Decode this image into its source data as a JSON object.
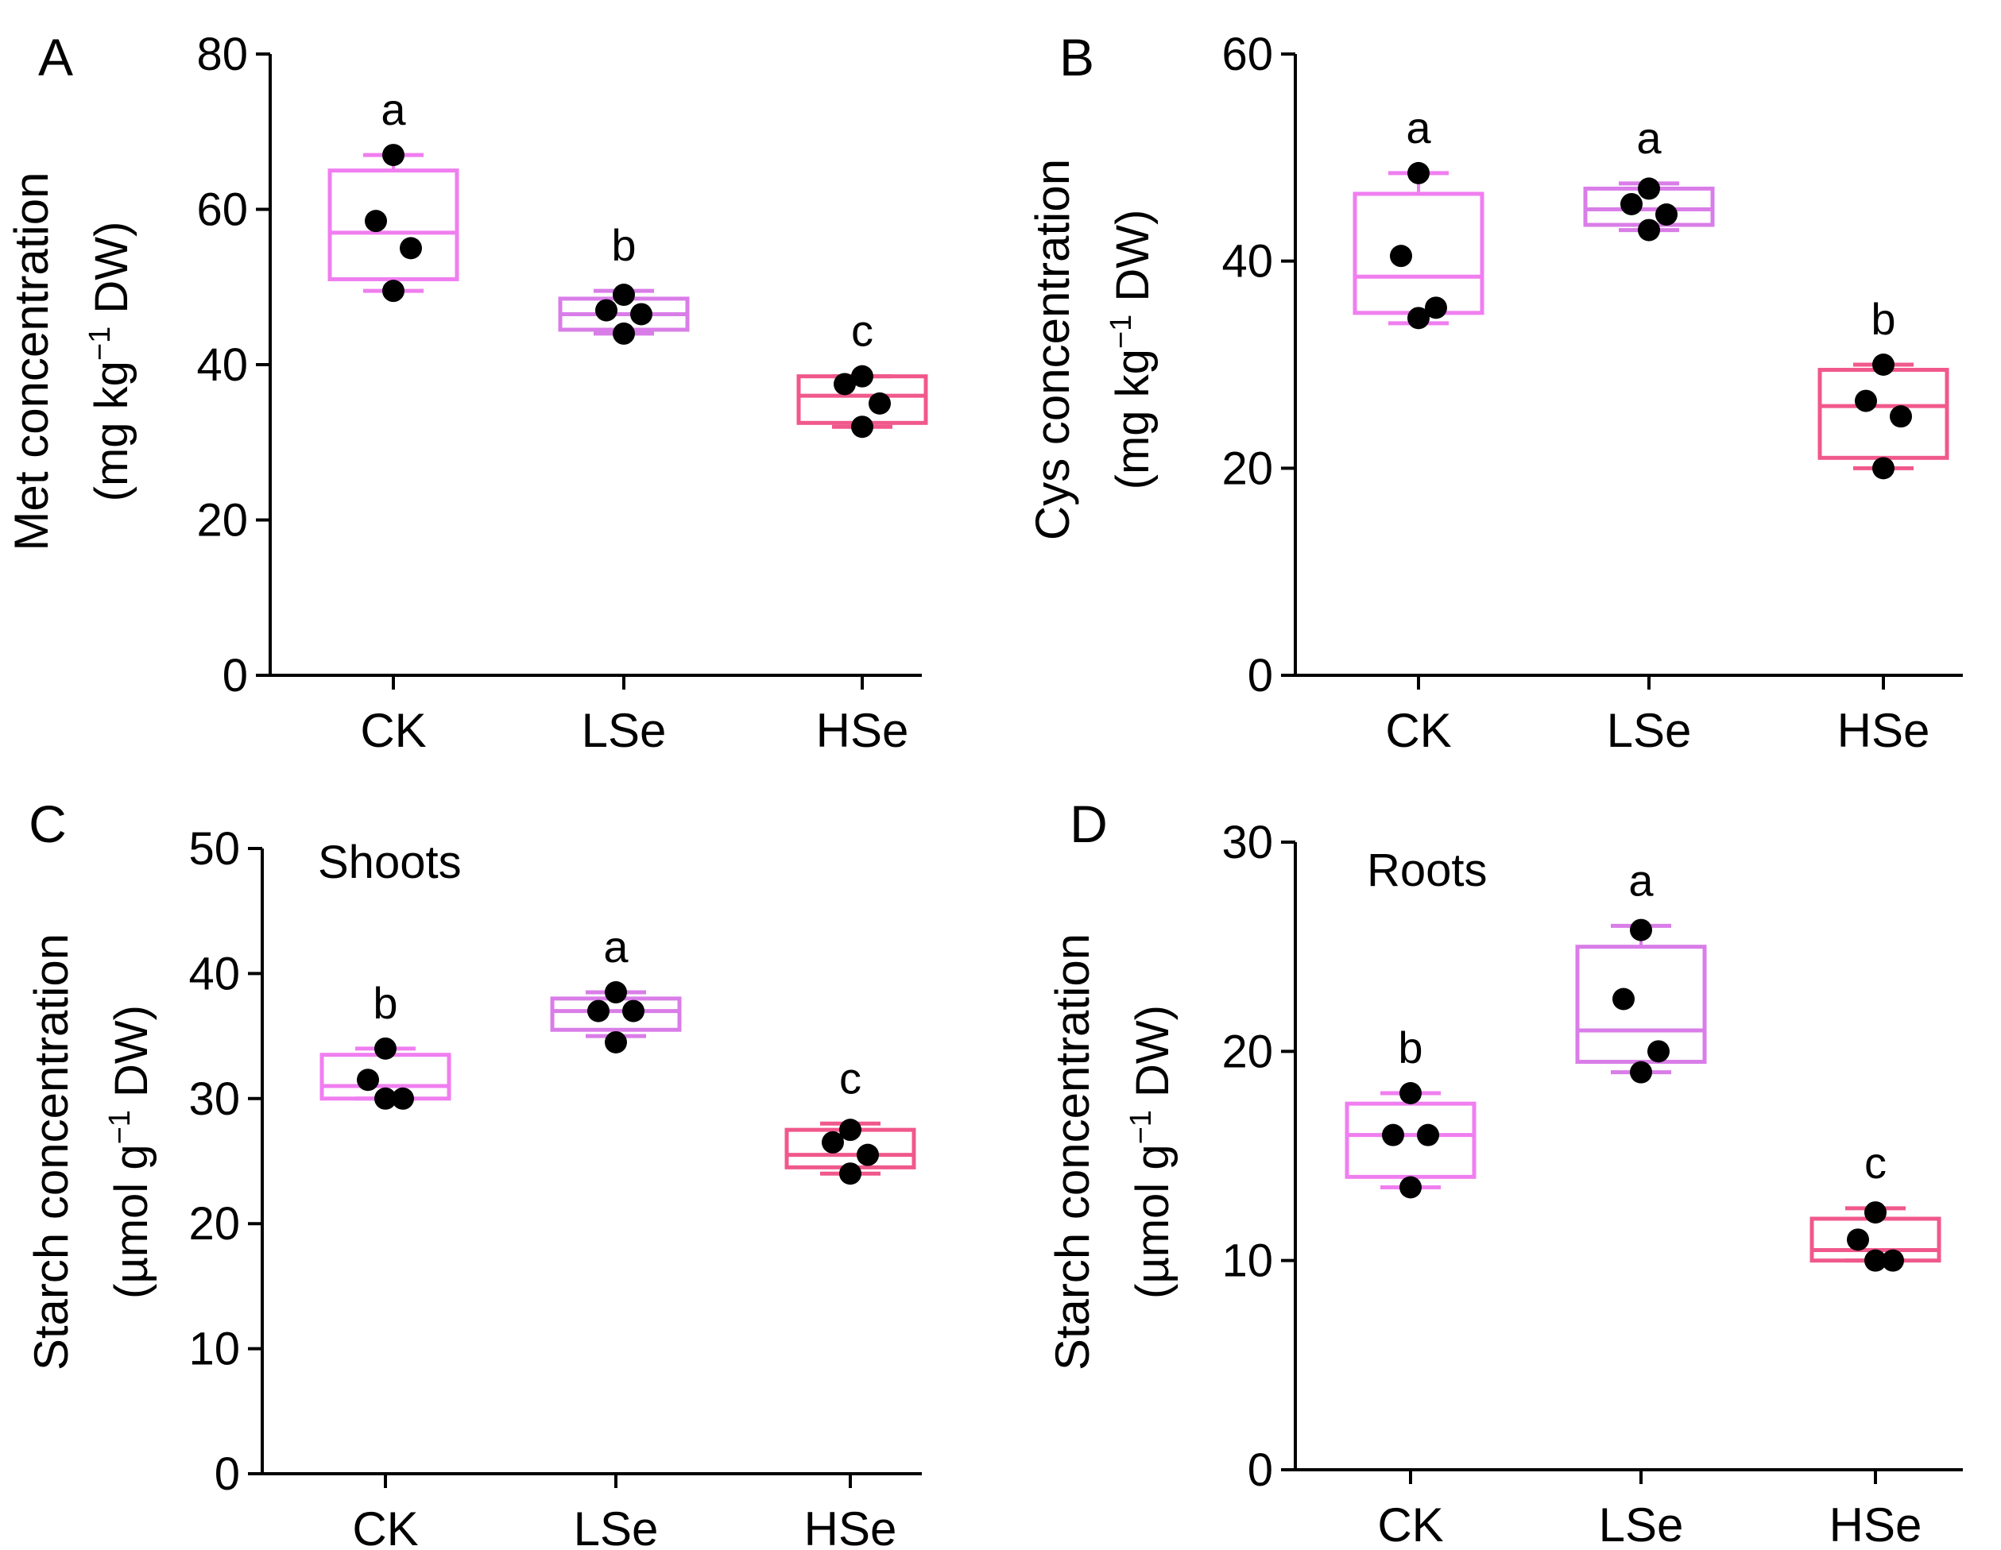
{
  "figure": {
    "panel_count": 4
  },
  "colors": {
    "CK": "#f07ef0",
    "LSe": "#d97de8",
    "HSe": "#f0588c",
    "point": "#000000",
    "axis": "#000000"
  },
  "chart_data": [
    {
      "panel": "A",
      "type": "box",
      "categories": [
        "CK",
        "LSe",
        "HSe"
      ],
      "ylabel_line1": "Met concentration",
      "ylabel_line2_pre": "(mg kg",
      "ylabel_sup": "−1",
      "ylabel_line2_post": " DW)",
      "ylim": [
        0,
        80
      ],
      "yticks": [
        0,
        20,
        40,
        60,
        80
      ],
      "annotation": "",
      "groups": [
        {
          "name": "CK",
          "letter": "a",
          "min": 49.5,
          "q1": 51,
          "median": 57,
          "q3": 65,
          "max": 67,
          "points": [
            67,
            58.5,
            55,
            49.5
          ]
        },
        {
          "name": "LSe",
          "letter": "b",
          "min": 44,
          "q1": 44.5,
          "median": 46.5,
          "q3": 48.5,
          "max": 49.5,
          "points": [
            49,
            47,
            46.5,
            44
          ]
        },
        {
          "name": "HSe",
          "letter": "c",
          "min": 32,
          "q1": 32.5,
          "median": 36,
          "q3": 38.5,
          "max": 38.5,
          "points": [
            38.5,
            37.5,
            35,
            32
          ]
        }
      ]
    },
    {
      "panel": "B",
      "type": "box",
      "categories": [
        "CK",
        "LSe",
        "HSe"
      ],
      "ylabel_line1": "Cys concentration",
      "ylabel_line2_pre": "(mg kg",
      "ylabel_sup": "−1",
      "ylabel_line2_post": " DW)",
      "ylim": [
        0,
        60
      ],
      "yticks": [
        0,
        20,
        40,
        60
      ],
      "annotation": "",
      "groups": [
        {
          "name": "CK",
          "letter": "a",
          "min": 34,
          "q1": 35,
          "median": 38.5,
          "q3": 46.5,
          "max": 48.5,
          "points": [
            48.5,
            40.5,
            35.5,
            34.5
          ]
        },
        {
          "name": "LSe",
          "letter": "a",
          "min": 43,
          "q1": 43.5,
          "median": 45,
          "q3": 47,
          "max": 47.5,
          "points": [
            47,
            45.5,
            44.5,
            43
          ]
        },
        {
          "name": "HSe",
          "letter": "b",
          "min": 20,
          "q1": 21,
          "median": 26,
          "q3": 29.5,
          "max": 30,
          "points": [
            30,
            26.5,
            25,
            20
          ]
        }
      ]
    },
    {
      "panel": "C",
      "type": "box",
      "categories": [
        "CK",
        "LSe",
        "HSe"
      ],
      "ylabel_line1": "Starch concentration",
      "ylabel_line2_pre": "(µmol g",
      "ylabel_sup": "−1",
      "ylabel_line2_post": " DW)",
      "ylim": [
        0,
        50
      ],
      "yticks": [
        0,
        10,
        20,
        30,
        40,
        50
      ],
      "annotation": "Shoots",
      "groups": [
        {
          "name": "CK",
          "letter": "b",
          "min": 30,
          "q1": 30,
          "median": 31,
          "q3": 33.5,
          "max": 34,
          "points": [
            34,
            31.5,
            30,
            30
          ]
        },
        {
          "name": "LSe",
          "letter": "a",
          "min": 35,
          "q1": 35.5,
          "median": 37,
          "q3": 38,
          "max": 38.5,
          "points": [
            38.5,
            37,
            37,
            34.5
          ]
        },
        {
          "name": "HSe",
          "letter": "c",
          "min": 24,
          "q1": 24.5,
          "median": 25.5,
          "q3": 27.5,
          "max": 28,
          "points": [
            27.5,
            26.5,
            25.5,
            24
          ]
        }
      ]
    },
    {
      "panel": "D",
      "type": "box",
      "categories": [
        "CK",
        "LSe",
        "HSe"
      ],
      "ylabel_line1": "Starch concentration",
      "ylabel_line2_pre": "(µmol g",
      "ylabel_sup": "−1",
      "ylabel_line2_post": " DW)",
      "ylim": [
        0,
        30
      ],
      "yticks": [
        0,
        10,
        20,
        30
      ],
      "annotation": "Roots",
      "groups": [
        {
          "name": "CK",
          "letter": "b",
          "min": 13.5,
          "q1": 14,
          "median": 16,
          "q3": 17.5,
          "max": 18,
          "points": [
            18,
            16,
            16,
            13.5
          ]
        },
        {
          "name": "LSe",
          "letter": "a",
          "min": 19,
          "q1": 19.5,
          "median": 21,
          "q3": 25,
          "max": 26,
          "points": [
            25.8,
            22.5,
            20,
            19
          ]
        },
        {
          "name": "HSe",
          "letter": "c",
          "min": 10,
          "q1": 10,
          "median": 10.5,
          "q3": 12,
          "max": 12.5,
          "points": [
            12.3,
            11,
            10,
            10
          ]
        }
      ]
    }
  ]
}
